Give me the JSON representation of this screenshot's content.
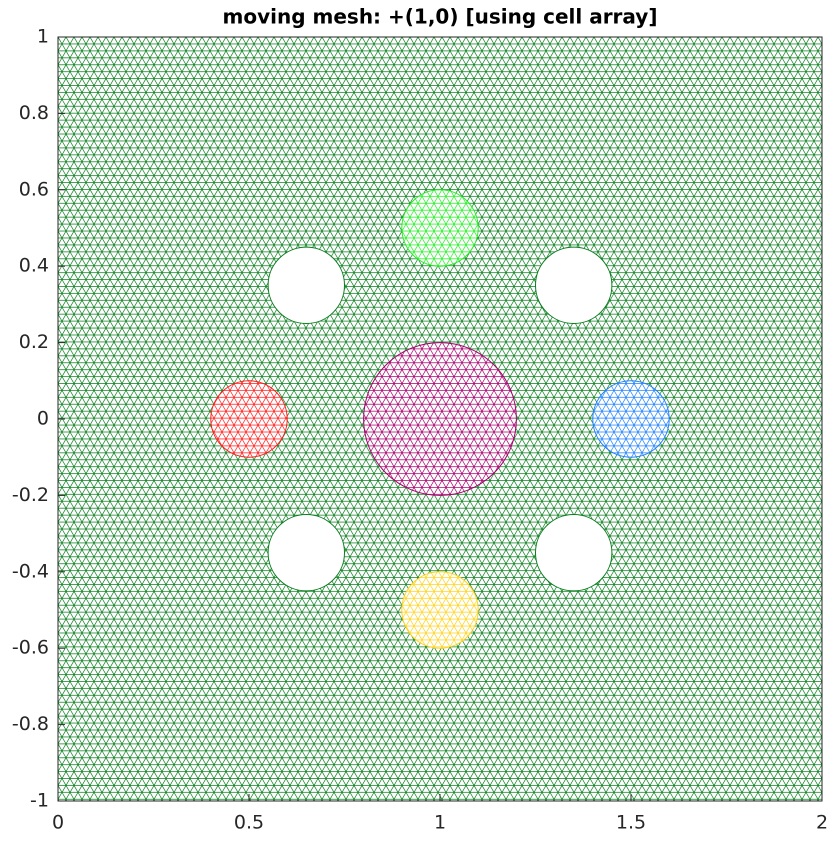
{
  "chart_data": {
    "type": "mesh",
    "title": "moving mesh: +(1,0) [using cell array]",
    "mesh_color": "#0a7d1e",
    "xlim": [
      0,
      2
    ],
    "ylim": [
      -1,
      1
    ],
    "xticks": [
      0,
      0.5,
      1,
      1.5,
      2
    ],
    "yticks": [
      -1,
      -0.8,
      -0.6,
      -0.4,
      -0.2,
      0,
      0.2,
      0.4,
      0.6,
      0.8,
      1
    ],
    "regions": [
      {
        "x": 1,
        "y": 0.5,
        "r": 0.1,
        "color": "#22ee22"
      },
      {
        "x": 0.5,
        "y": 0,
        "r": 0.1,
        "color": "#ff1a1a"
      },
      {
        "x": 1,
        "y": 0,
        "r": 0.2,
        "color": "#a3006b"
      },
      {
        "x": 1.5,
        "y": 0,
        "r": 0.1,
        "color": "#1e7fff"
      },
      {
        "x": 1,
        "y": -0.5,
        "r": 0.1,
        "color": "#ffd21a"
      }
    ],
    "holes": [
      {
        "x": 0.65,
        "y": 0.35,
        "r": 0.1
      },
      {
        "x": 1.35,
        "y": 0.35,
        "r": 0.1
      },
      {
        "x": 0.65,
        "y": -0.35,
        "r": 0.1
      },
      {
        "x": 1.35,
        "y": -0.35,
        "r": 0.1
      }
    ]
  }
}
